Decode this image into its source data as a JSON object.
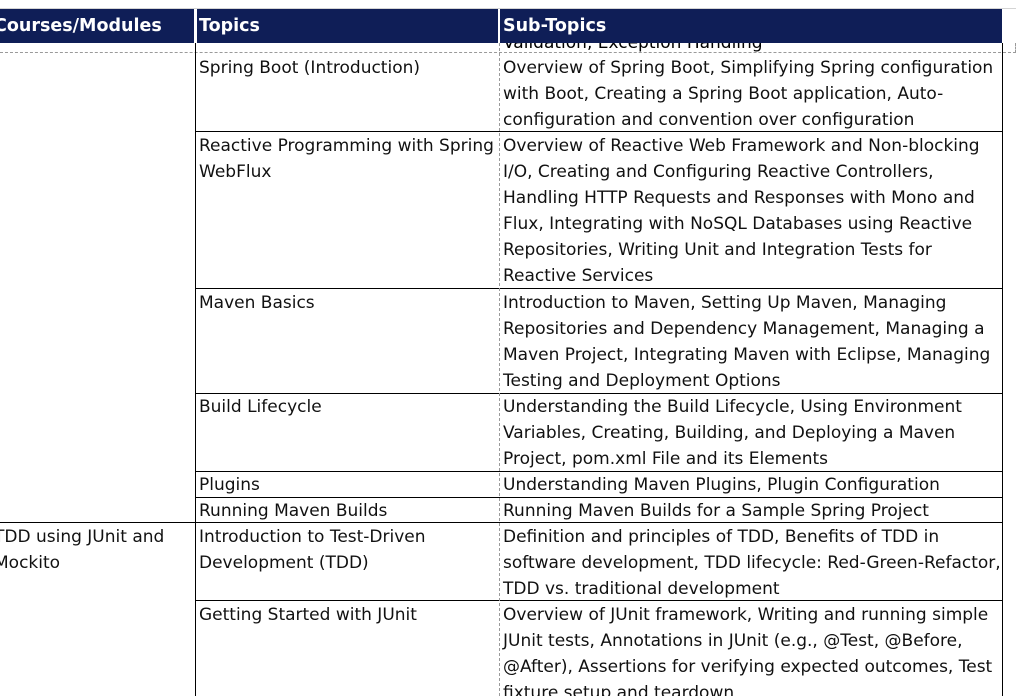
{
  "headers": {
    "courses": "Courses/Modules",
    "topics": "Topics",
    "subtopics": "Sub-Topics"
  },
  "partial_top_text": "Validation, Exception Handling",
  "rows": [
    {
      "topic": "Spring Boot (Introduction)",
      "subtopics": "Overview of Spring Boot, Simplifying Spring configuration with Boot, Creating a Spring Boot application, Auto-configuration and convention over configuration"
    },
    {
      "topic": "Reactive Programming with Spring WebFlux",
      "subtopics": "Overview of Reactive Web Framework and Non-blocking I/O, Creating and Configuring Reactive Controllers, Handling HTTP Requests and Responses with Mono and Flux, Integrating with NoSQL Databases using Reactive Repositories, Writing Unit and Integration Tests for Reactive Services"
    },
    {
      "topic": "Maven Basics",
      "subtopics": "Introduction to Maven, Setting Up Maven, Managing Repositories and Dependency Management,  Managing a Maven Project, Integrating Maven with Eclipse, Managing Testing and Deployment Options"
    },
    {
      "topic": "Build Lifecycle",
      "subtopics": "Understanding the Build Lifecycle, Using Environment Variables, Creating, Building, and Deploying a Maven Project, pom.xml File and its Elements"
    },
    {
      "topic": "Plugins",
      "subtopics": "Understanding Maven Plugins, Plugin Configuration"
    },
    {
      "topic": "Running Maven Builds",
      "subtopics": "Running Maven Builds for a Sample Spring Project"
    },
    {
      "course": "TDD using JUnit and Mockito",
      "topic": "Introduction to Test-Driven Development (TDD)",
      "subtopics": "Definition and principles of TDD, Benefits of TDD in software development, TDD lifecycle: Red-Green-Refactor, TDD vs. traditional development"
    },
    {
      "topic": "Getting Started with JUnit",
      "subtopics": "Overview of JUnit framework, Writing and running simple JUnit tests, Annotations in JUnit (e.g., @Test, @Before, @After), Assertions for verifying expected outcomes, Test fixture setup and teardown"
    }
  ]
}
